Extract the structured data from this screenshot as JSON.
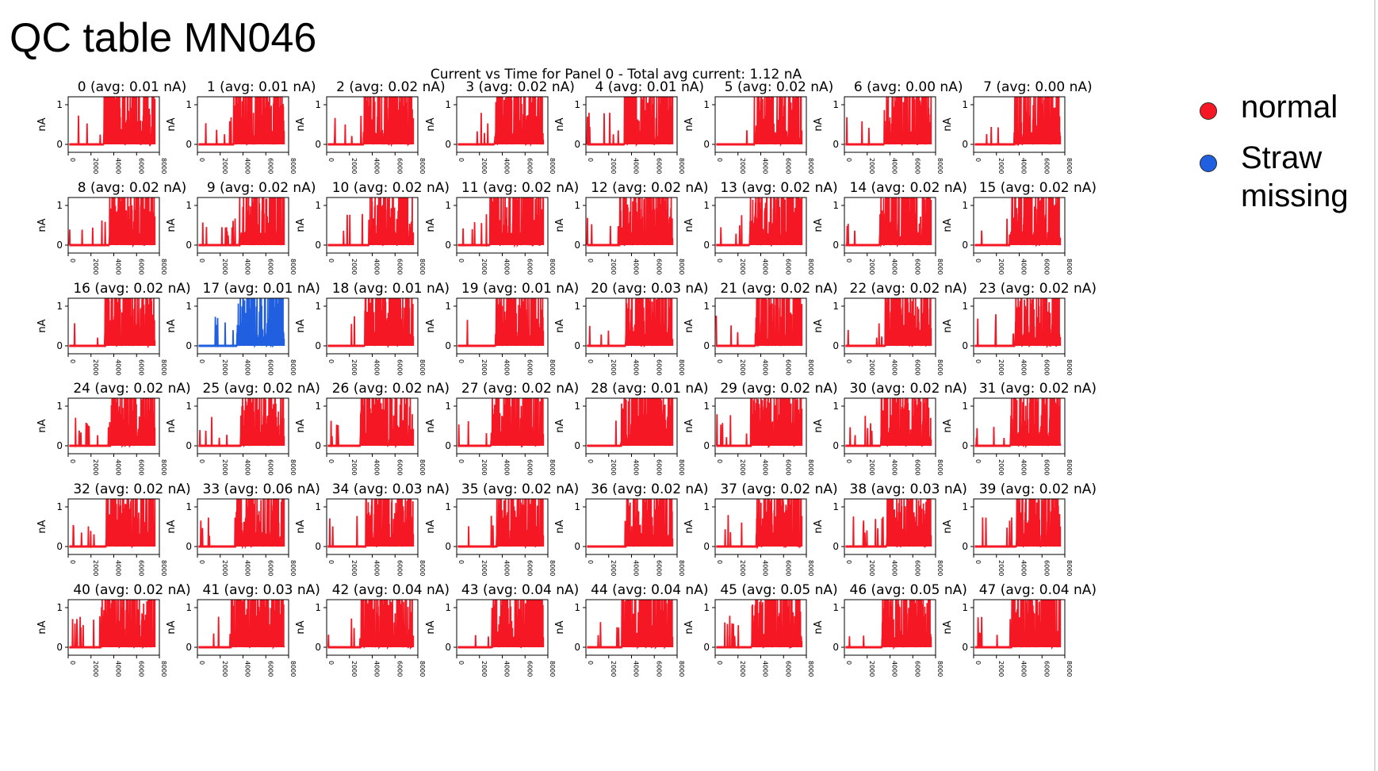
{
  "page_title": "QC table MN046",
  "legend": {
    "items": [
      {
        "label": "normal",
        "color": "#f51824"
      },
      {
        "label": "Straw\nmissing",
        "color": "#1f5fe0"
      }
    ]
  },
  "chart_data": {
    "type": "line",
    "title": "Current vs Time for Panel 0 - Total avg current: 1.12 nA",
    "ylabel": "nA",
    "xlim": [
      0,
      8000
    ],
    "ylim": [
      -0.2,
      1.2
    ],
    "x_ticks": [
      "0",
      "2000",
      "4000",
      "6000",
      "8000"
    ],
    "y_ticks": [
      "0",
      "1"
    ],
    "normal_color": "#f51824",
    "missing_color": "#1f5fe0",
    "panels": [
      {
        "id": "0",
        "title": "0 (avg: 0.01 nA)",
        "status": "normal"
      },
      {
        "id": "1",
        "title": "1 (avg: 0.01 nA)",
        "status": "normal"
      },
      {
        "id": "2",
        "title": "2 (avg: 0.02 nA)",
        "status": "normal"
      },
      {
        "id": "3",
        "title": "3 (avg: 0.02 nA)",
        "status": "normal"
      },
      {
        "id": "4",
        "title": "4 (avg: 0.01 nA)",
        "status": "normal"
      },
      {
        "id": "5",
        "title": "5 (avg: 0.02 nA)",
        "status": "normal"
      },
      {
        "id": "6",
        "title": "6 (avg: 0.00 nA)",
        "status": "normal"
      },
      {
        "id": "7",
        "title": "7 (avg: 0.00 nA)",
        "status": "normal"
      },
      {
        "id": "8",
        "title": "8 (avg: 0.02 nA)",
        "status": "normal"
      },
      {
        "id": "9",
        "title": "9 (avg: 0.02 nA)",
        "status": "normal"
      },
      {
        "id": "10",
        "title": "10 (avg: 0.02 nA)",
        "status": "normal"
      },
      {
        "id": "11",
        "title": "11 (avg: 0.02 nA)",
        "status": "normal"
      },
      {
        "id": "12",
        "title": "12 (avg: 0.02 nA)",
        "status": "normal"
      },
      {
        "id": "13",
        "title": "13 (avg: 0.02 nA)",
        "status": "normal"
      },
      {
        "id": "14",
        "title": "14 (avg: 0.02 nA)",
        "status": "normal"
      },
      {
        "id": "15",
        "title": "15 (avg: 0.02 nA)",
        "status": "normal"
      },
      {
        "id": "16",
        "title": "16 (avg: 0.02 nA)",
        "status": "normal"
      },
      {
        "id": "17",
        "title": "17 (avg: 0.01 nA)",
        "status": "missing"
      },
      {
        "id": "18",
        "title": "18 (avg: 0.01 nA)",
        "status": "normal"
      },
      {
        "id": "19",
        "title": "19 (avg: 0.01 nA)",
        "status": "normal"
      },
      {
        "id": "20",
        "title": "20 (avg: 0.03 nA)",
        "status": "normal"
      },
      {
        "id": "21",
        "title": "21 (avg: 0.02 nA)",
        "status": "normal"
      },
      {
        "id": "22",
        "title": "22 (avg: 0.02 nA)",
        "status": "normal"
      },
      {
        "id": "23",
        "title": "23 (avg: 0.02 nA)",
        "status": "normal"
      },
      {
        "id": "24",
        "title": "24 (avg: 0.02 nA)",
        "status": "normal"
      },
      {
        "id": "25",
        "title": "25 (avg: 0.02 nA)",
        "status": "normal"
      },
      {
        "id": "26",
        "title": "26 (avg: 0.02 nA)",
        "status": "normal"
      },
      {
        "id": "27",
        "title": "27 (avg: 0.02 nA)",
        "status": "normal"
      },
      {
        "id": "28",
        "title": "28 (avg: 0.01 nA)",
        "status": "normal"
      },
      {
        "id": "29",
        "title": "29 (avg: 0.02 nA)",
        "status": "normal"
      },
      {
        "id": "30",
        "title": "30 (avg: 0.02 nA)",
        "status": "normal"
      },
      {
        "id": "31",
        "title": "31 (avg: 0.02 nA)",
        "status": "normal"
      },
      {
        "id": "32",
        "title": "32 (avg: 0.02 nA)",
        "status": "normal"
      },
      {
        "id": "33",
        "title": "33 (avg: 0.06 nA)",
        "status": "normal"
      },
      {
        "id": "34",
        "title": "34 (avg: 0.03 nA)",
        "status": "normal"
      },
      {
        "id": "35",
        "title": "35 (avg: 0.02 nA)",
        "status": "normal"
      },
      {
        "id": "36",
        "title": "36 (avg: 0.02 nA)",
        "status": "normal"
      },
      {
        "id": "37",
        "title": "37 (avg: 0.02 nA)",
        "status": "normal"
      },
      {
        "id": "38",
        "title": "38 (avg: 0.03 nA)",
        "status": "normal"
      },
      {
        "id": "39",
        "title": "39 (avg: 0.02 nA)",
        "status": "normal"
      },
      {
        "id": "40",
        "title": "40 (avg: 0.02 nA)",
        "status": "normal"
      },
      {
        "id": "41",
        "title": "41 (avg: 0.03 nA)",
        "status": "normal"
      },
      {
        "id": "42",
        "title": "42 (avg: 0.04 nA)",
        "status": "normal"
      },
      {
        "id": "43",
        "title": "43 (avg: 0.04 nA)",
        "status": "normal"
      },
      {
        "id": "44",
        "title": "44 (avg: 0.04 nA)",
        "status": "normal"
      },
      {
        "id": "45",
        "title": "45 (avg: 0.05 nA)",
        "status": "normal"
      },
      {
        "id": "46",
        "title": "46 (avg: 0.05 nA)",
        "status": "normal"
      },
      {
        "id": "47",
        "title": "47 (avg: 0.04 nA)",
        "status": "normal"
      }
    ]
  }
}
